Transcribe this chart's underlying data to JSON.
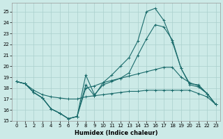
{
  "xlabel": "Humidex (Indice chaleur)",
  "background_color": "#cceae7",
  "line_color": "#1a6b6b",
  "grid_color": "#aacfcc",
  "xlim": [
    -0.5,
    23.5
  ],
  "ylim": [
    15,
    25.8
  ],
  "yticks": [
    15,
    16,
    17,
    18,
    19,
    20,
    21,
    22,
    23,
    24,
    25
  ],
  "xticks": [
    0,
    1,
    2,
    3,
    4,
    5,
    6,
    7,
    8,
    9,
    10,
    11,
    12,
    13,
    14,
    15,
    16,
    17,
    18,
    19,
    20,
    21,
    22,
    23
  ],
  "line_peak_y": [
    18.6,
    18.4,
    17.6,
    17.1,
    16.1,
    15.7,
    15.2,
    15.4,
    18.3,
    17.3,
    18.5,
    19.2,
    20.0,
    20.8,
    22.3,
    25.0,
    25.3,
    24.2,
    22.2,
    19.8,
    18.3,
    18.1,
    17.5,
    16.5
  ],
  "line_mid_y": [
    18.6,
    18.4,
    17.6,
    17.1,
    16.1,
    15.7,
    15.2,
    15.4,
    19.2,
    17.4,
    18.3,
    18.6,
    18.9,
    19.4,
    21.0,
    22.5,
    23.8,
    23.6,
    22.4,
    19.8,
    18.4,
    18.3,
    17.5,
    16.5
  ],
  "line_flat1_y": [
    18.6,
    18.4,
    17.6,
    17.1,
    16.1,
    15.7,
    15.2,
    15.4,
    18.0,
    18.2,
    18.5,
    18.7,
    18.9,
    19.1,
    19.3,
    19.5,
    19.7,
    19.9,
    19.9,
    19.0,
    18.5,
    18.2,
    17.5,
    16.5
  ],
  "line_flat2_y": [
    18.6,
    18.4,
    17.8,
    17.4,
    17.2,
    17.1,
    17.0,
    17.0,
    17.2,
    17.3,
    17.4,
    17.5,
    17.6,
    17.7,
    17.7,
    17.8,
    17.8,
    17.8,
    17.8,
    17.8,
    17.8,
    17.5,
    17.2,
    16.5
  ]
}
